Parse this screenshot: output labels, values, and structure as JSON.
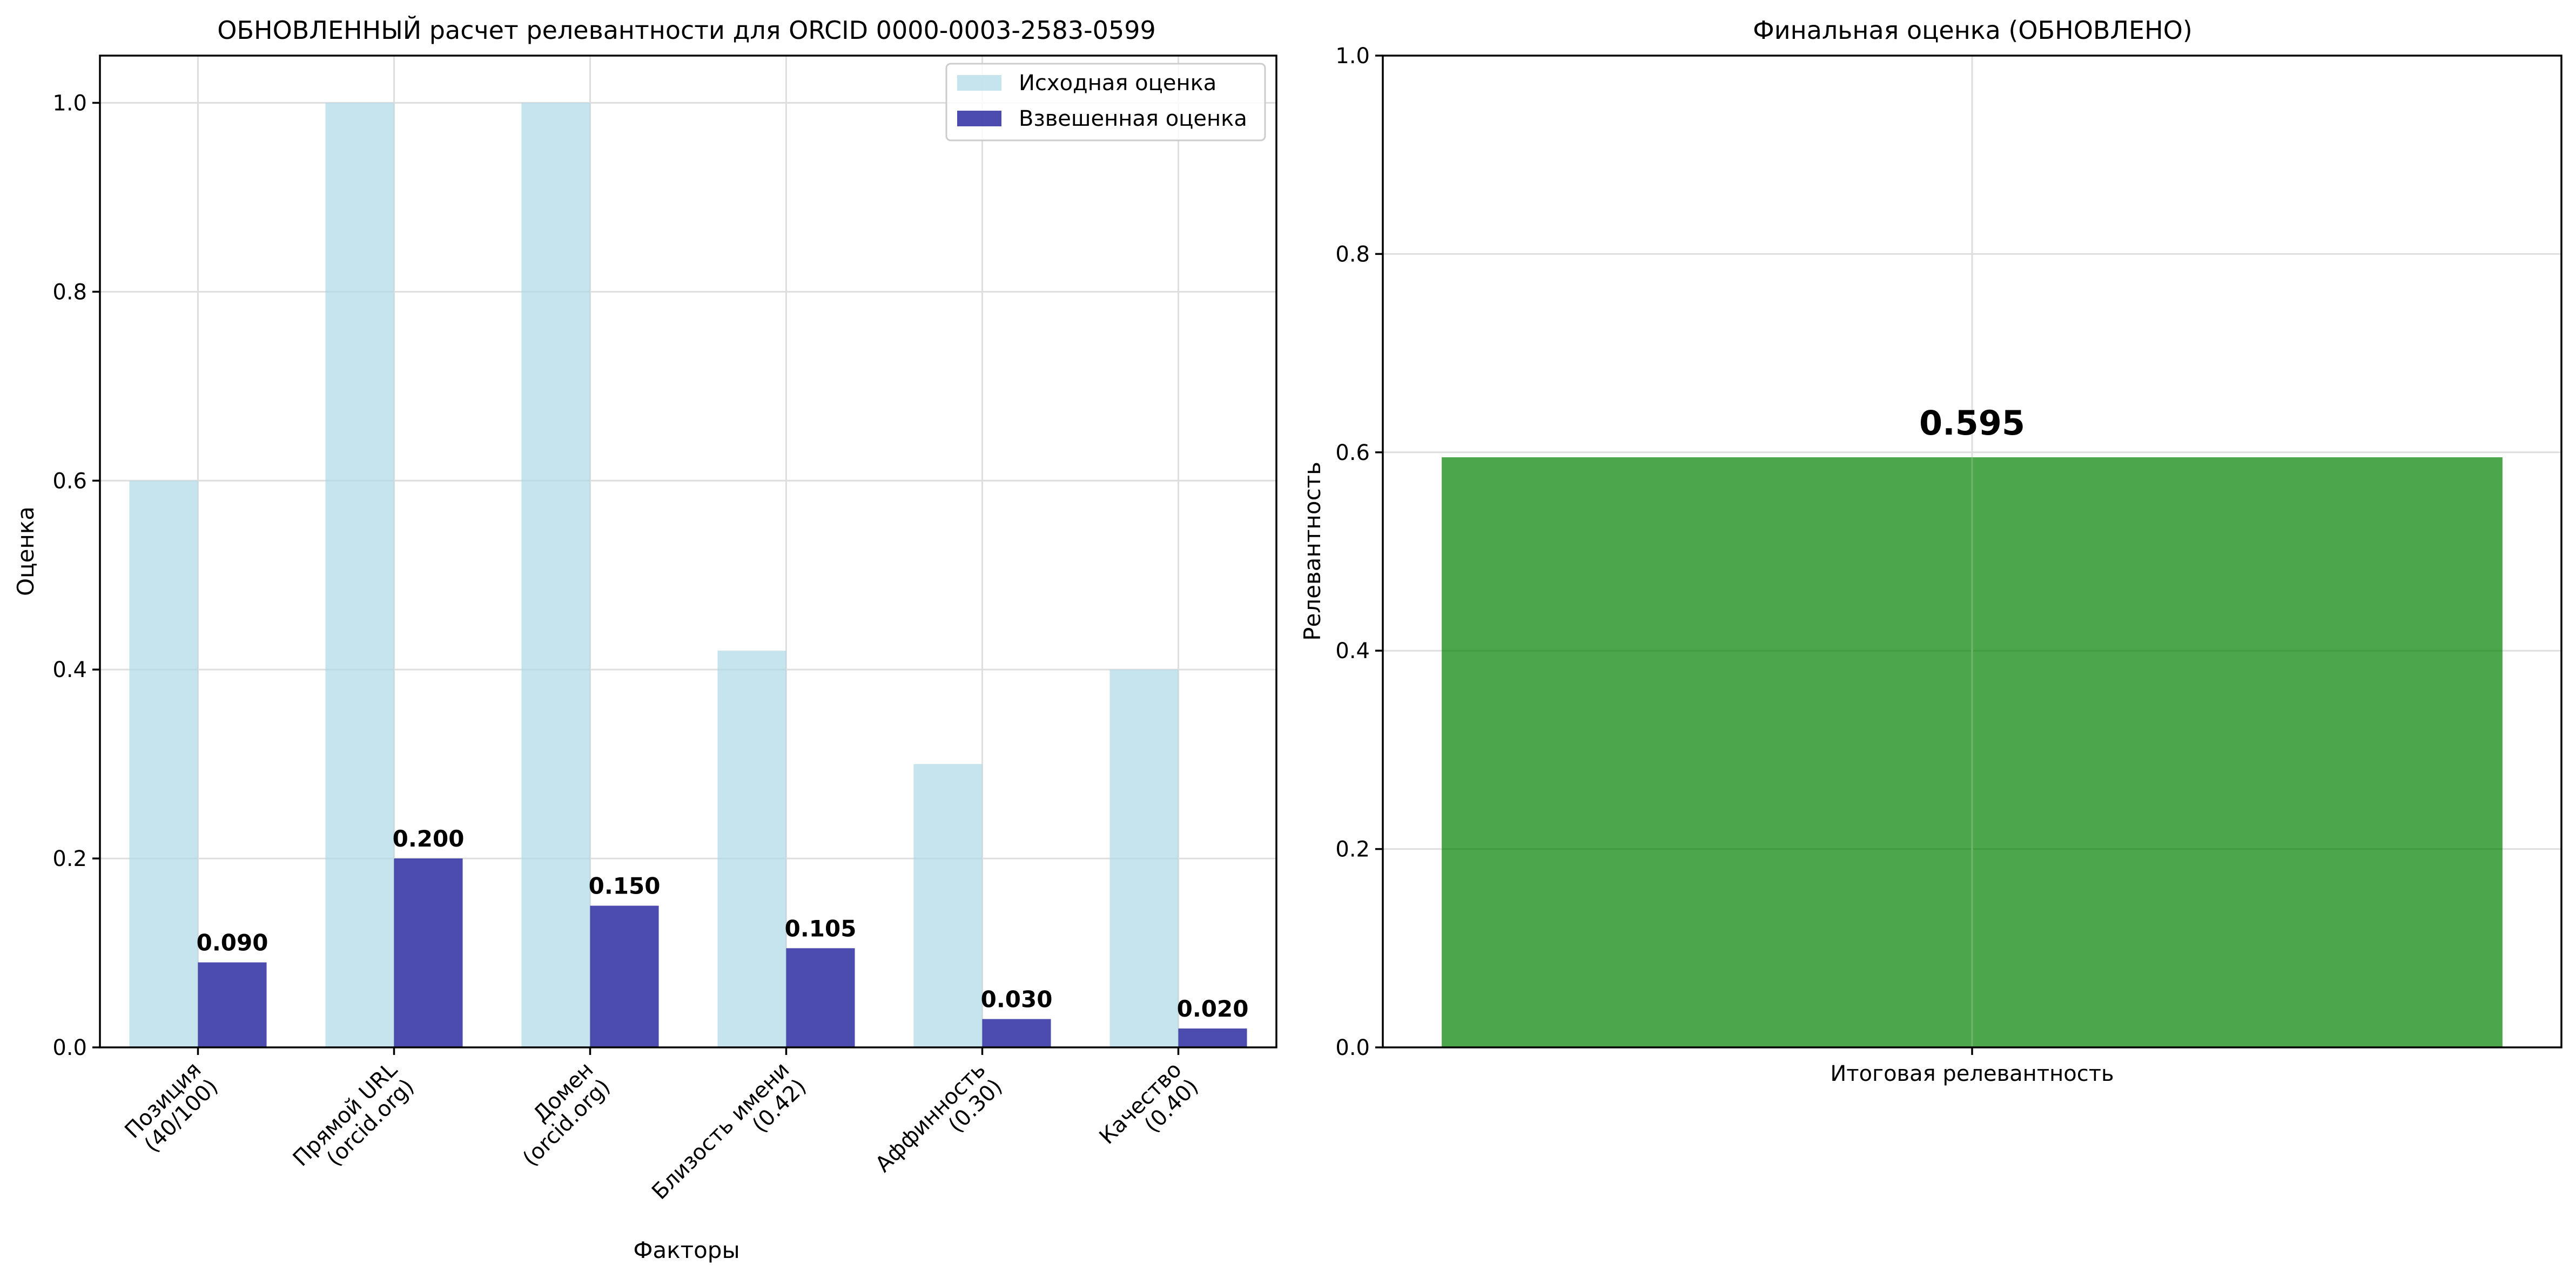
{
  "colors": {
    "original": "#add8e6",
    "weighted": "#00008b",
    "final": "#008000"
  },
  "chart_data": [
    {
      "type": "bar",
      "title": "ОБНОВЛЕННЫЙ расчет релевантности для ORCID 0000-0003-2583-0599",
      "xlabel": "Факторы",
      "ylabel": "Оценка",
      "ylim": [
        0,
        1.05
      ],
      "yticks": [
        "0.0",
        "0.2",
        "0.4",
        "0.6",
        "0.8",
        "1.0"
      ],
      "categories": [
        [
          "Позиция",
          "(40/100)"
        ],
        [
          "Прямой URL",
          "(orcid.org)"
        ],
        [
          "Домен",
          "(orcid.org)"
        ],
        [
          "Близость имени",
          "(0.42)"
        ],
        [
          "Аффинность",
          "(0.30)"
        ],
        [
          "Качество",
          "(0.40)"
        ]
      ],
      "series": [
        {
          "name": "Исходная оценка",
          "values": [
            0.6,
            1.0,
            1.0,
            0.42,
            0.3,
            0.4
          ],
          "opacity": 0.7
        },
        {
          "name": "Взвешенная оценка",
          "values": [
            0.09,
            0.2,
            0.15,
            0.105,
            0.03,
            0.02
          ],
          "opacity": 0.7
        }
      ],
      "data_labels": [
        "0.090",
        "0.200",
        "0.150",
        "0.105",
        "0.030",
        "0.020"
      ],
      "legend": "top-right",
      "grid": true
    },
    {
      "type": "bar",
      "title": "Финальная оценка (ОБНОВЛЕНО)",
      "xlabel": "",
      "ylabel": "Релевантность",
      "ylim": [
        0,
        1.0
      ],
      "yticks": [
        "0.0",
        "0.2",
        "0.4",
        "0.6",
        "0.8",
        "1.0"
      ],
      "categories": [
        "Итоговая релевантность"
      ],
      "values": [
        0.595
      ],
      "data_labels": [
        "0.595"
      ],
      "grid": true
    }
  ]
}
